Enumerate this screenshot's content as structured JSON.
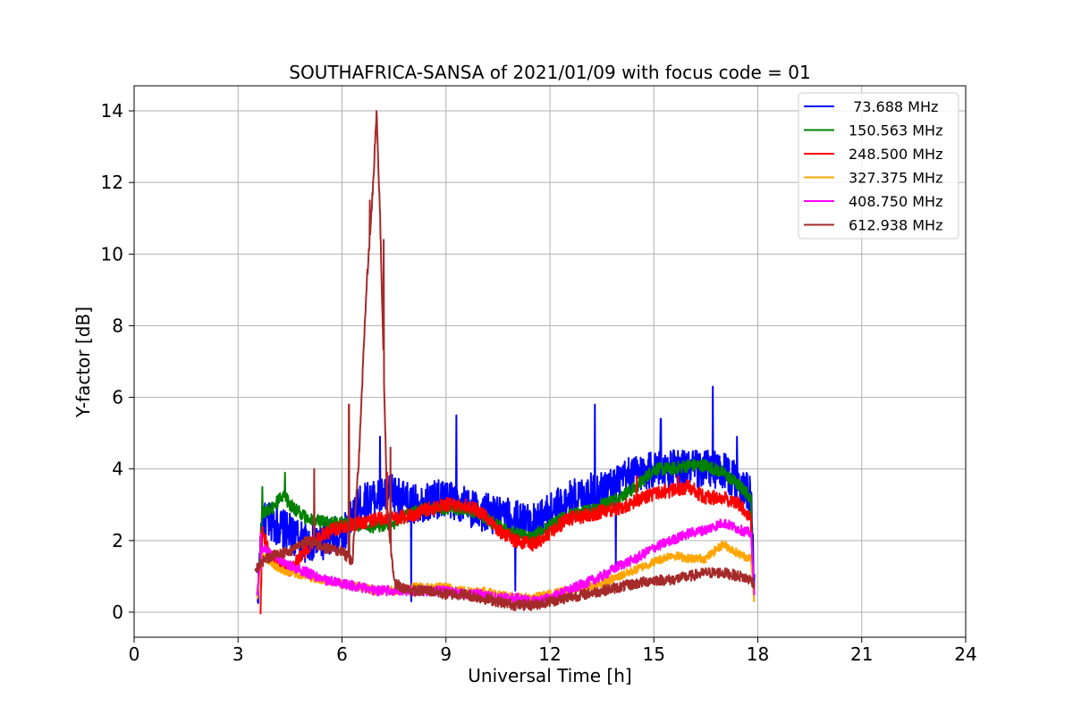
{
  "chart_data": {
    "type": "line",
    "title": "SOUTHAFRICA-SANSA of 2021/01/09 with focus code = 01",
    "xlabel": "Universal Time [h]",
    "ylabel": "Y-factor [dB]",
    "xlim": [
      0,
      24
    ],
    "ylim": [
      -0.7,
      14.7
    ],
    "xticks": [
      0,
      3,
      6,
      9,
      12,
      15,
      18,
      21,
      24
    ],
    "xtick_labels": [
      "0",
      "3",
      "6",
      "9",
      "12",
      "15",
      "18",
      "21",
      "24"
    ],
    "yticks": [
      0,
      2,
      4,
      6,
      8,
      10,
      12,
      14
    ],
    "ytick_labels": [
      "0",
      "2",
      "4",
      "6",
      "8",
      "10",
      "12",
      "14"
    ],
    "grid": true,
    "legend_position": "top-right",
    "series": [
      {
        "name": " 73.688 MHz",
        "color": "#0000ff",
        "x": [
          3.55,
          3.7,
          4.0,
          4.5,
          5.0,
          5.5,
          6.0,
          6.3,
          6.5,
          7.0,
          7.5,
          8.0,
          8.5,
          9.0,
          9.5,
          10.0,
          10.5,
          11.0,
          11.5,
          12.0,
          12.5,
          13.0,
          13.5,
          14.0,
          14.5,
          15.0,
          15.5,
          16.0,
          16.5,
          17.0,
          17.5,
          17.8,
          17.9
        ],
        "y": [
          0.3,
          2.5,
          2.5,
          2.2,
          1.9,
          2.0,
          2.2,
          2.6,
          3.0,
          3.2,
          3.3,
          3.0,
          3.1,
          3.2,
          3.0,
          2.8,
          2.7,
          2.6,
          2.5,
          2.8,
          3.1,
          3.3,
          3.4,
          3.6,
          3.9,
          4.0,
          4.0,
          4.0,
          4.0,
          3.9,
          3.6,
          3.2,
          0.8
        ],
        "spikes": [
          [
            7.1,
            4.9
          ],
          [
            8.0,
            0.3
          ],
          [
            9.3,
            5.5
          ],
          [
            11.0,
            0.6
          ],
          [
            13.3,
            5.8
          ],
          [
            13.9,
            1.3
          ],
          [
            15.2,
            5.4
          ],
          [
            16.7,
            6.3
          ],
          [
            17.4,
            4.9
          ]
        ]
      },
      {
        "name": "150.563 MHz",
        "color": "#008000",
        "x": [
          3.6,
          3.7,
          4.0,
          4.3,
          4.5,
          5.0,
          5.5,
          6.0,
          6.5,
          7.0,
          7.5,
          8.0,
          8.5,
          9.0,
          9.5,
          10.0,
          10.5,
          11.0,
          11.5,
          12.0,
          12.5,
          13.0,
          13.5,
          14.0,
          14.5,
          15.0,
          15.5,
          16.0,
          16.5,
          17.0,
          17.5,
          17.8,
          17.85
        ],
        "y": [
          1.2,
          2.8,
          2.9,
          3.3,
          3.0,
          2.6,
          2.5,
          2.5,
          2.4,
          2.4,
          2.5,
          2.8,
          2.9,
          2.9,
          2.9,
          2.7,
          2.4,
          2.2,
          2.1,
          2.4,
          2.7,
          2.8,
          3.0,
          3.2,
          3.5,
          4.0,
          4.0,
          4.1,
          4.1,
          3.9,
          3.5,
          3.2,
          1.0
        ],
        "spikes": [
          [
            3.7,
            3.5
          ],
          [
            4.35,
            3.9
          ]
        ]
      },
      {
        "name": "248.500 MHz",
        "color": "#ff0000",
        "x": [
          3.65,
          3.7,
          4.0,
          4.5,
          5.0,
          5.5,
          6.0,
          6.5,
          7.0,
          7.5,
          8.0,
          8.5,
          9.0,
          9.5,
          10.0,
          10.5,
          11.0,
          11.5,
          12.0,
          12.5,
          13.0,
          13.5,
          14.0,
          14.5,
          15.0,
          15.5,
          16.0,
          16.5,
          17.0,
          17.5,
          17.8,
          17.85
        ],
        "y": [
          0.0,
          2.2,
          1.5,
          1.2,
          1.8,
          2.2,
          2.4,
          2.5,
          2.6,
          2.6,
          2.7,
          2.9,
          3.0,
          3.0,
          2.8,
          2.3,
          2.0,
          1.9,
          2.2,
          2.6,
          2.7,
          2.8,
          2.9,
          3.1,
          3.3,
          3.4,
          3.5,
          3.2,
          3.2,
          3.0,
          2.6,
          1.2
        ],
        "spikes": [
          [
            7.3,
            3.9
          ],
          [
            14.5,
            3.8
          ],
          [
            15.7,
            3.8
          ]
        ]
      },
      {
        "name": "327.375 MHz",
        "color": "#ffa500",
        "x": [
          3.55,
          3.7,
          4.0,
          4.5,
          5.0,
          5.5,
          6.0,
          6.5,
          7.0,
          7.5,
          8.0,
          8.5,
          9.0,
          9.5,
          10.0,
          10.5,
          11.0,
          11.5,
          12.0,
          12.5,
          13.0,
          13.5,
          14.0,
          14.5,
          15.0,
          15.5,
          16.0,
          16.5,
          17.0,
          17.5,
          17.8,
          17.9
        ],
        "y": [
          0.4,
          1.6,
          1.3,
          1.1,
          1.0,
          0.9,
          0.8,
          0.7,
          0.6,
          0.6,
          0.7,
          0.7,
          0.7,
          0.6,
          0.6,
          0.5,
          0.4,
          0.4,
          0.5,
          0.6,
          0.7,
          0.8,
          1.0,
          1.2,
          1.4,
          1.6,
          1.5,
          1.5,
          1.9,
          1.6,
          1.5,
          0.3
        ],
        "spikes": []
      },
      {
        "name": "408.750 MHz",
        "color": "#ff00ff",
        "x": [
          3.55,
          3.7,
          4.0,
          4.5,
          5.0,
          5.5,
          6.0,
          6.5,
          7.0,
          7.5,
          8.0,
          8.5,
          9.0,
          9.5,
          10.0,
          10.5,
          11.0,
          11.5,
          12.0,
          12.5,
          13.0,
          13.5,
          14.0,
          14.5,
          15.0,
          15.5,
          16.0,
          16.5,
          17.0,
          17.5,
          17.8,
          17.9
        ],
        "y": [
          0.6,
          1.8,
          1.6,
          1.3,
          1.1,
          0.9,
          0.8,
          0.7,
          0.6,
          0.6,
          0.6,
          0.6,
          0.6,
          0.5,
          0.5,
          0.4,
          0.4,
          0.3,
          0.4,
          0.6,
          0.8,
          1.0,
          1.3,
          1.5,
          1.8,
          2.0,
          2.2,
          2.3,
          2.5,
          2.3,
          2.2,
          0.6
        ],
        "spikes": [
          [
            3.65,
            2.2
          ]
        ]
      },
      {
        "name": "612.938 MHz",
        "color": "#a52a2a",
        "x": [
          3.5,
          3.7,
          4.0,
          4.5,
          5.0,
          5.5,
          6.0,
          6.3,
          6.5,
          6.7,
          6.9,
          7.0,
          7.1,
          7.3,
          7.5,
          8.0,
          8.5,
          9.0,
          9.5,
          10.0,
          10.5,
          11.0,
          11.5,
          12.0,
          12.5,
          13.0,
          13.5,
          14.0,
          14.5,
          15.0,
          15.5,
          16.0,
          16.5,
          17.0,
          17.5,
          17.8,
          17.9
        ],
        "y": [
          1.2,
          1.4,
          1.6,
          1.7,
          2.0,
          1.8,
          1.7,
          1.4,
          4.5,
          9.0,
          12.0,
          14.0,
          11.0,
          3.0,
          0.8,
          0.6,
          0.6,
          0.5,
          0.5,
          0.4,
          0.3,
          0.2,
          0.2,
          0.3,
          0.4,
          0.5,
          0.6,
          0.7,
          0.8,
          0.9,
          0.9,
          1.0,
          1.1,
          1.1,
          1.0,
          0.9,
          0.8
        ],
        "spikes": [
          [
            5.2,
            4.0
          ],
          [
            6.2,
            5.8
          ],
          [
            6.8,
            11.5
          ],
          [
            7.2,
            10.4
          ],
          [
            7.4,
            4.6
          ]
        ]
      }
    ]
  }
}
